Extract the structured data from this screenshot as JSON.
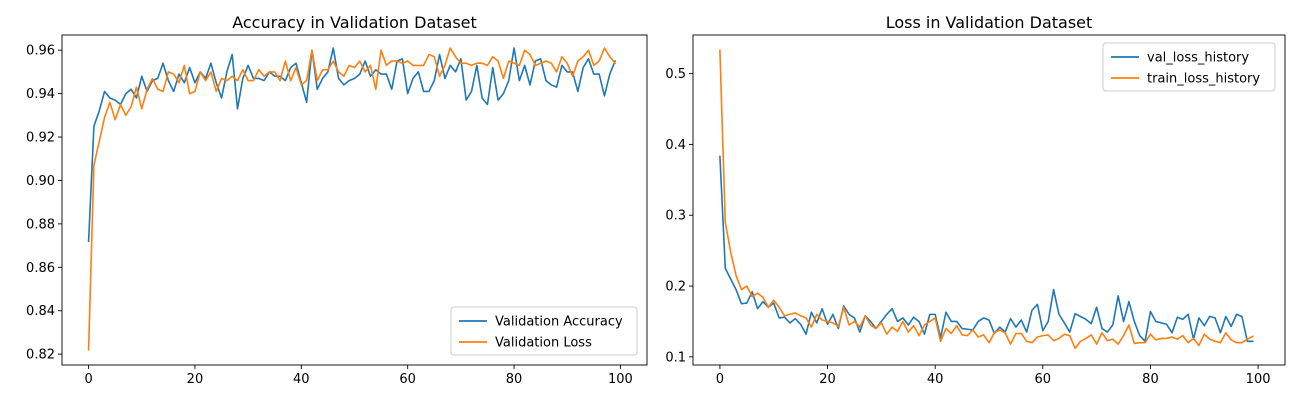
{
  "chart_data": [
    {
      "type": "line",
      "title": "Accuracy in Validation Dataset",
      "xlabel": "",
      "ylabel": "",
      "xlim": [
        -5,
        105
      ],
      "ylim": [
        0.815,
        0.967
      ],
      "xticks": [
        0,
        20,
        40,
        60,
        80,
        100
      ],
      "yticks": [
        0.82,
        0.84,
        0.86,
        0.88,
        0.9,
        0.92,
        0.94,
        0.96
      ],
      "ytick_format": "0.00",
      "grid": false,
      "legend_position": "bottom-right",
      "series": [
        {
          "name": "Validation Accuracy",
          "color": "#1f77b4",
          "values": [
            0.872,
            0.925,
            0.932,
            0.941,
            0.938,
            0.937,
            0.935,
            0.94,
            0.942,
            0.938,
            0.948,
            0.941,
            0.946,
            0.947,
            0.954,
            0.946,
            0.941,
            0.949,
            0.945,
            0.952,
            0.945,
            0.95,
            0.947,
            0.954,
            0.945,
            0.938,
            0.95,
            0.958,
            0.933,
            0.947,
            0.953,
            0.947,
            0.947,
            0.946,
            0.95,
            0.948,
            0.948,
            0.946,
            0.952,
            0.954,
            0.945,
            0.936,
            0.96,
            0.942,
            0.947,
            0.95,
            0.961,
            0.947,
            0.944,
            0.946,
            0.947,
            0.949,
            0.955,
            0.948,
            0.951,
            0.949,
            0.949,
            0.942,
            0.955,
            0.956,
            0.94,
            0.947,
            0.95,
            0.941,
            0.941,
            0.946,
            0.958,
            0.947,
            0.953,
            0.95,
            0.956,
            0.937,
            0.941,
            0.953,
            0.938,
            0.935,
            0.952,
            0.937,
            0.94,
            0.946,
            0.961,
            0.946,
            0.953,
            0.944,
            0.955,
            0.956,
            0.946,
            0.944,
            0.943,
            0.953,
            0.95,
            0.95,
            0.941,
            0.952,
            0.956,
            0.949,
            0.949,
            0.939,
            0.949,
            0.955
          ]
        },
        {
          "name": "Validation Loss",
          "color": "#ff7f0e",
          "values": [
            0.822,
            0.907,
            0.918,
            0.929,
            0.936,
            0.928,
            0.935,
            0.93,
            0.934,
            0.943,
            0.933,
            0.942,
            0.947,
            0.942,
            0.941,
            0.95,
            0.949,
            0.945,
            0.953,
            0.94,
            0.941,
            0.95,
            0.946,
            0.95,
            0.941,
            0.947,
            0.946,
            0.948,
            0.946,
            0.951,
            0.946,
            0.946,
            0.951,
            0.948,
            0.95,
            0.95,
            0.946,
            0.955,
            0.946,
            0.952,
            0.944,
            0.946,
            0.96,
            0.946,
            0.951,
            0.951,
            0.955,
            0.95,
            0.948,
            0.953,
            0.952,
            0.955,
            0.95,
            0.953,
            0.942,
            0.96,
            0.953,
            0.955,
            0.955,
            0.954,
            0.955,
            0.953,
            0.953,
            0.953,
            0.958,
            0.957,
            0.948,
            0.953,
            0.961,
            0.957,
            0.954,
            0.954,
            0.953,
            0.954,
            0.954,
            0.953,
            0.957,
            0.955,
            0.947,
            0.955,
            0.954,
            0.953,
            0.96,
            0.958,
            0.953,
            0.954,
            0.955,
            0.954,
            0.95,
            0.957,
            0.954,
            0.948,
            0.955,
            0.957,
            0.96,
            0.953,
            0.955,
            0.961,
            0.957,
            0.954
          ]
        }
      ]
    },
    {
      "type": "line",
      "title": "Loss in Validation Dataset",
      "xlabel": "",
      "ylabel": "",
      "xlim": [
        -5,
        105
      ],
      "ylim": [
        0.0885,
        0.5545
      ],
      "xticks": [
        0,
        20,
        40,
        60,
        80,
        100
      ],
      "yticks": [
        0.1,
        0.2,
        0.3,
        0.4,
        0.5
      ],
      "ytick_format": "0.0",
      "grid": false,
      "legend_position": "top-right",
      "series": [
        {
          "name": "val_loss_history",
          "color": "#1f77b4",
          "values": [
            0.383,
            0.225,
            0.21,
            0.195,
            0.175,
            0.176,
            0.192,
            0.168,
            0.178,
            0.17,
            0.176,
            0.155,
            0.156,
            0.148,
            0.154,
            0.146,
            0.132,
            0.163,
            0.148,
            0.168,
            0.146,
            0.16,
            0.14,
            0.172,
            0.16,
            0.155,
            0.135,
            0.158,
            0.15,
            0.14,
            0.15,
            0.16,
            0.168,
            0.15,
            0.155,
            0.145,
            0.156,
            0.15,
            0.132,
            0.16,
            0.16,
            0.127,
            0.163,
            0.15,
            0.15,
            0.14,
            0.139,
            0.138,
            0.15,
            0.155,
            0.152,
            0.133,
            0.142,
            0.135,
            0.154,
            0.142,
            0.152,
            0.135,
            0.166,
            0.174,
            0.137,
            0.15,
            0.195,
            0.16,
            0.148,
            0.135,
            0.161,
            0.157,
            0.153,
            0.147,
            0.17,
            0.14,
            0.135,
            0.145,
            0.186,
            0.15,
            0.178,
            0.15,
            0.13,
            0.122,
            0.164,
            0.15,
            0.148,
            0.146,
            0.134,
            0.156,
            0.153,
            0.16,
            0.125,
            0.155,
            0.144,
            0.157,
            0.155,
            0.134,
            0.157,
            0.143,
            0.16,
            0.157,
            0.122,
            0.122
          ]
        },
        {
          "name": "train_loss_history",
          "color": "#ff7f0e",
          "values": [
            0.533,
            0.29,
            0.248,
            0.215,
            0.195,
            0.2,
            0.185,
            0.19,
            0.184,
            0.17,
            0.18,
            0.17,
            0.158,
            0.16,
            0.162,
            0.158,
            0.155,
            0.142,
            0.16,
            0.152,
            0.15,
            0.148,
            0.143,
            0.17,
            0.145,
            0.15,
            0.142,
            0.158,
            0.145,
            0.14,
            0.148,
            0.132,
            0.142,
            0.136,
            0.15,
            0.135,
            0.144,
            0.13,
            0.145,
            0.15,
            0.155,
            0.122,
            0.14,
            0.133,
            0.144,
            0.131,
            0.13,
            0.138,
            0.128,
            0.131,
            0.12,
            0.134,
            0.138,
            0.134,
            0.118,
            0.133,
            0.133,
            0.122,
            0.12,
            0.128,
            0.13,
            0.131,
            0.123,
            0.126,
            0.132,
            0.13,
            0.112,
            0.122,
            0.126,
            0.131,
            0.118,
            0.134,
            0.123,
            0.125,
            0.118,
            0.13,
            0.145,
            0.119,
            0.12,
            0.12,
            0.132,
            0.124,
            0.126,
            0.126,
            0.128,
            0.125,
            0.13,
            0.12,
            0.126,
            0.116,
            0.132,
            0.125,
            0.122,
            0.12,
            0.134,
            0.124,
            0.12,
            0.12,
            0.125,
            0.129
          ]
        }
      ]
    }
  ]
}
